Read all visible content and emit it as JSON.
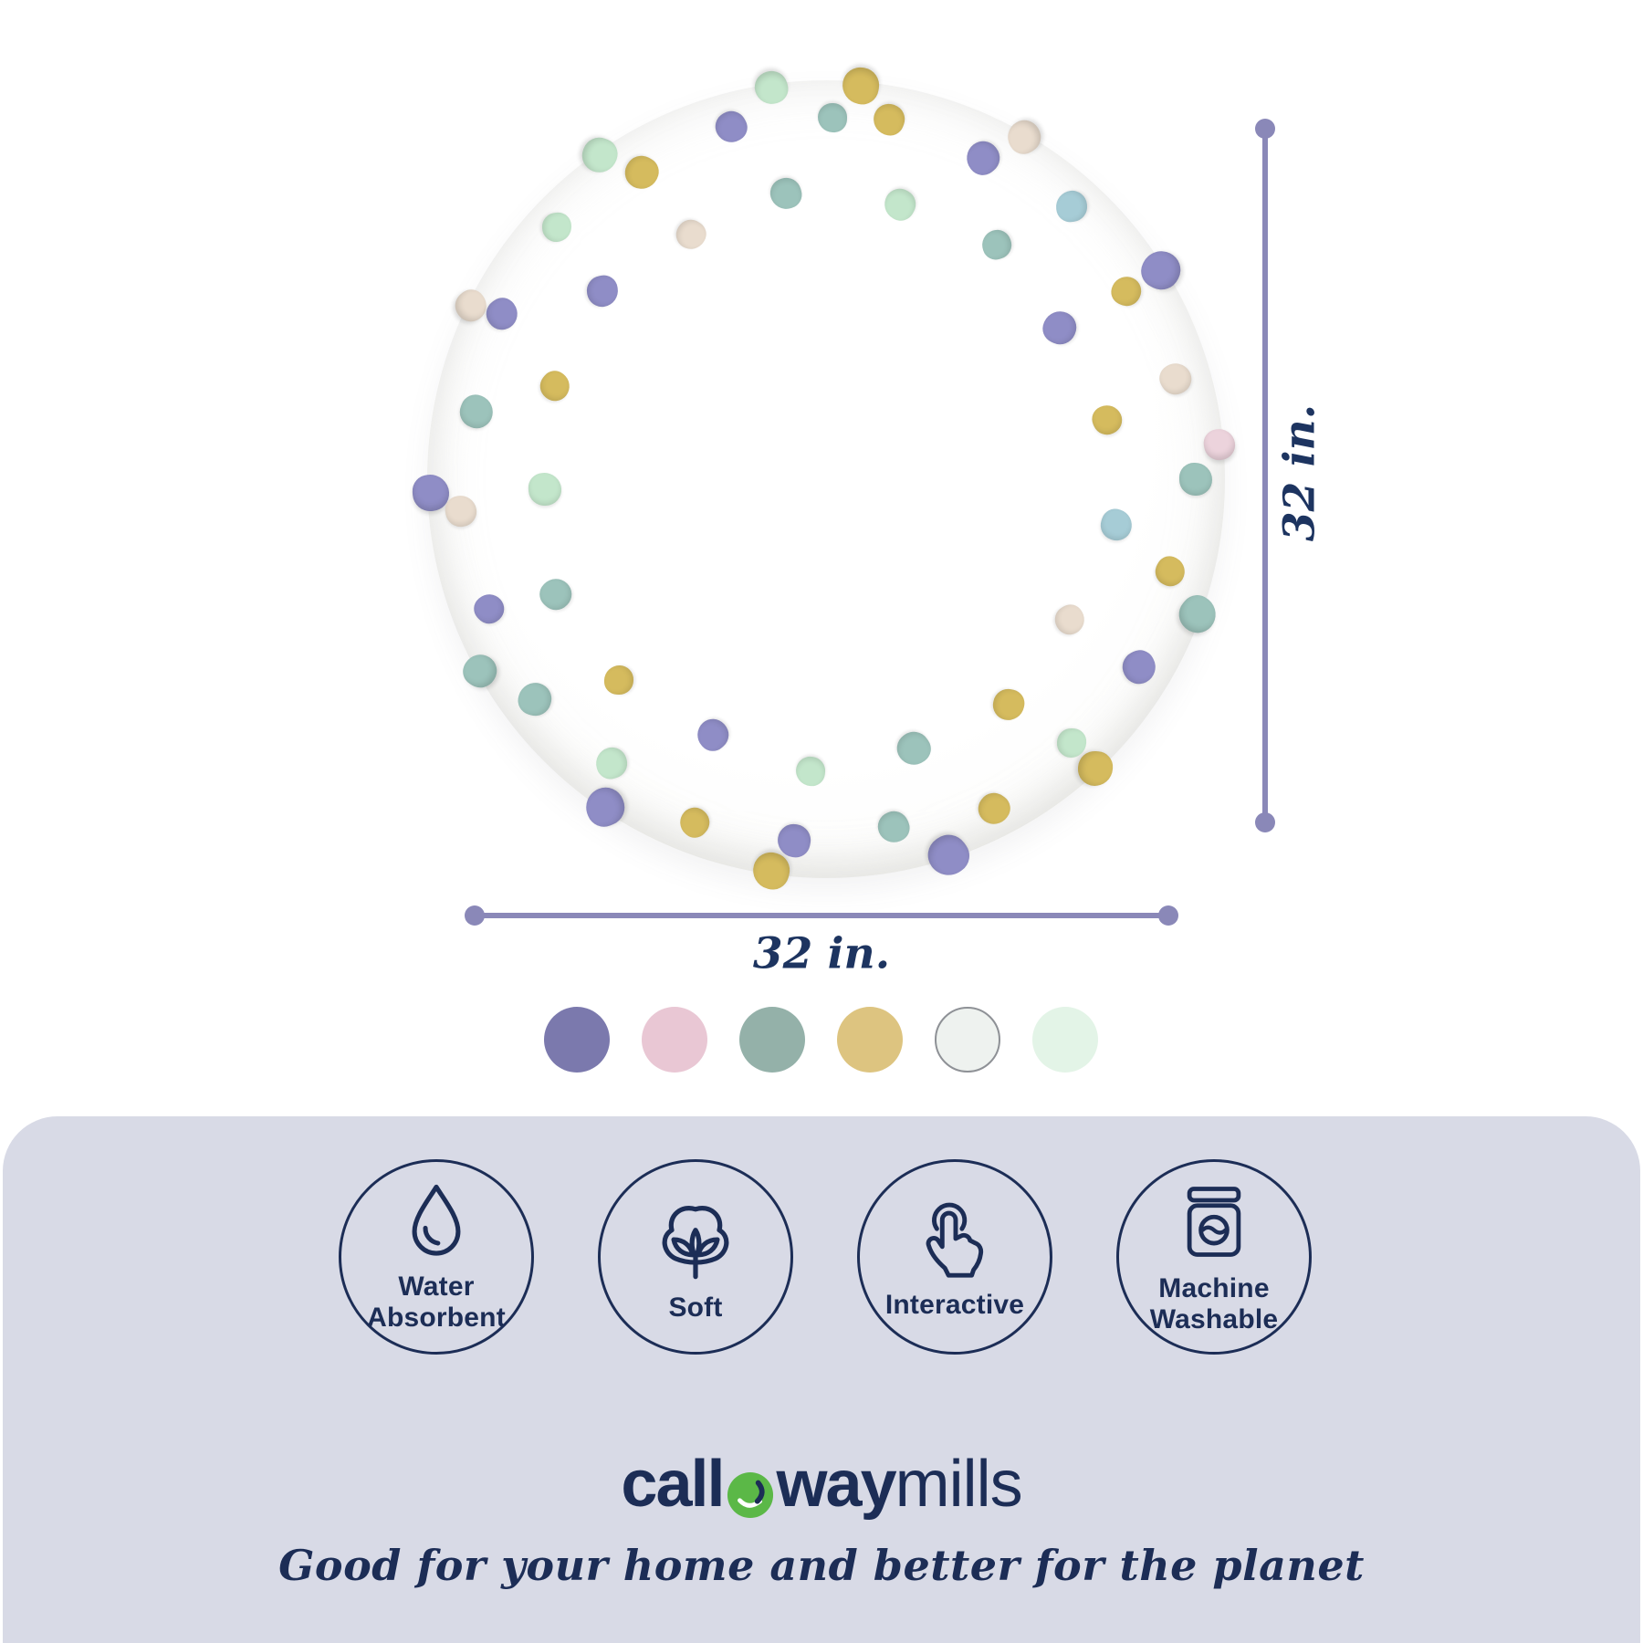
{
  "colors": {
    "navy": "#1c2d56",
    "dimpurple": "#8a88b8",
    "panel": "#d8dae6",
    "green": "#5bb847"
  },
  "product": {
    "dimensions": {
      "width_label": "32 in.",
      "height_label": "32 in."
    },
    "rug": {
      "diameter": 874,
      "palette": {
        "lav": "#8f8dc6",
        "gold": "#d5bb5e",
        "mint": "#c3e6cb",
        "sea": "#9cc3bb",
        "aqua": "#a6ccd6",
        "blush": "#e9dcce",
        "pink": "#ecd3dc"
      },
      "rim_poms": [
        [
          -85,
          40,
          "gold"
        ],
        [
          -60,
          36,
          "blush"
        ],
        [
          -32,
          42,
          "lav"
        ],
        [
          -5,
          34,
          "pink"
        ],
        [
          20,
          40,
          "sea"
        ],
        [
          47,
          38,
          "gold"
        ],
        [
          72,
          44,
          "lav"
        ],
        [
          98,
          40,
          "gold"
        ],
        [
          124,
          42,
          "lav"
        ],
        [
          151,
          36,
          "sea"
        ],
        [
          178,
          40,
          "lav"
        ],
        [
          206,
          34,
          "blush"
        ],
        [
          235,
          38,
          "mint"
        ],
        [
          262,
          36,
          "mint"
        ]
      ],
      "surface_dots": [
        [
          -80,
          400,
          34,
          "gold"
        ],
        [
          -64,
          392,
          36,
          "lav"
        ],
        [
          -48,
          402,
          34,
          "aqua"
        ],
        [
          -32,
          388,
          32,
          "gold"
        ],
        [
          -16,
          398,
          34,
          "blush"
        ],
        [
          0,
          405,
          36,
          "sea"
        ],
        [
          15,
          390,
          32,
          "gold"
        ],
        [
          31,
          400,
          36,
          "lav"
        ],
        [
          47,
          395,
          32,
          "mint"
        ],
        [
          63,
          405,
          34,
          "gold"
        ],
        [
          79,
          388,
          34,
          "sea"
        ],
        [
          95,
          398,
          36,
          "lav"
        ],
        [
          111,
          403,
          32,
          "gold"
        ],
        [
          127,
          390,
          34,
          "mint"
        ],
        [
          143,
          400,
          36,
          "sea"
        ],
        [
          159,
          395,
          32,
          "lav"
        ],
        [
          175,
          402,
          34,
          "blush"
        ],
        [
          191,
          390,
          36,
          "sea"
        ],
        [
          207,
          398,
          34,
          "lav"
        ],
        [
          223,
          404,
          32,
          "mint"
        ],
        [
          239,
          392,
          36,
          "gold"
        ],
        [
          255,
          400,
          34,
          "lav"
        ],
        [
          271,
          396,
          32,
          "sea"
        ],
        [
          -75,
          312,
          34,
          "mint"
        ],
        [
          -54,
          318,
          32,
          "sea"
        ],
        [
          -33,
          305,
          36,
          "lav"
        ],
        [
          -12,
          315,
          32,
          "gold"
        ],
        [
          9,
          322,
          34,
          "aqua"
        ],
        [
          30,
          308,
          32,
          "blush"
        ],
        [
          51,
          318,
          34,
          "gold"
        ],
        [
          72,
          310,
          36,
          "sea"
        ],
        [
          93,
          320,
          32,
          "mint"
        ],
        [
          114,
          306,
          34,
          "lav"
        ],
        [
          136,
          316,
          32,
          "gold"
        ],
        [
          157,
          322,
          34,
          "sea"
        ],
        [
          178,
          308,
          36,
          "mint"
        ],
        [
          199,
          314,
          32,
          "gold"
        ],
        [
          220,
          320,
          34,
          "lav"
        ],
        [
          241,
          306,
          32,
          "blush"
        ],
        [
          262,
          316,
          34,
          "sea"
        ]
      ]
    },
    "swatches": [
      {
        "name": "purple",
        "color": "#7b79ad"
      },
      {
        "name": "pink",
        "color": "#e9c7d4"
      },
      {
        "name": "sage",
        "color": "#94b1a9"
      },
      {
        "name": "gold",
        "color": "#ddc480"
      },
      {
        "name": "white",
        "color": "#eef2ef",
        "border": "#8e9196"
      },
      {
        "name": "mint",
        "color": "#e3f4e7"
      }
    ]
  },
  "features": [
    {
      "icon": "water-droplet-icon",
      "label": "Water Absorbent"
    },
    {
      "icon": "cotton-icon",
      "label": "Soft"
    },
    {
      "icon": "tap-hand-icon",
      "label": "Interactive"
    },
    {
      "icon": "washing-machine-icon",
      "label": "Machine Washable"
    }
  ],
  "brand": {
    "logo_pre": "call",
    "logo_post": "way",
    "logo_suffix": "mills",
    "tagline": "Good for your home and better for the planet"
  }
}
